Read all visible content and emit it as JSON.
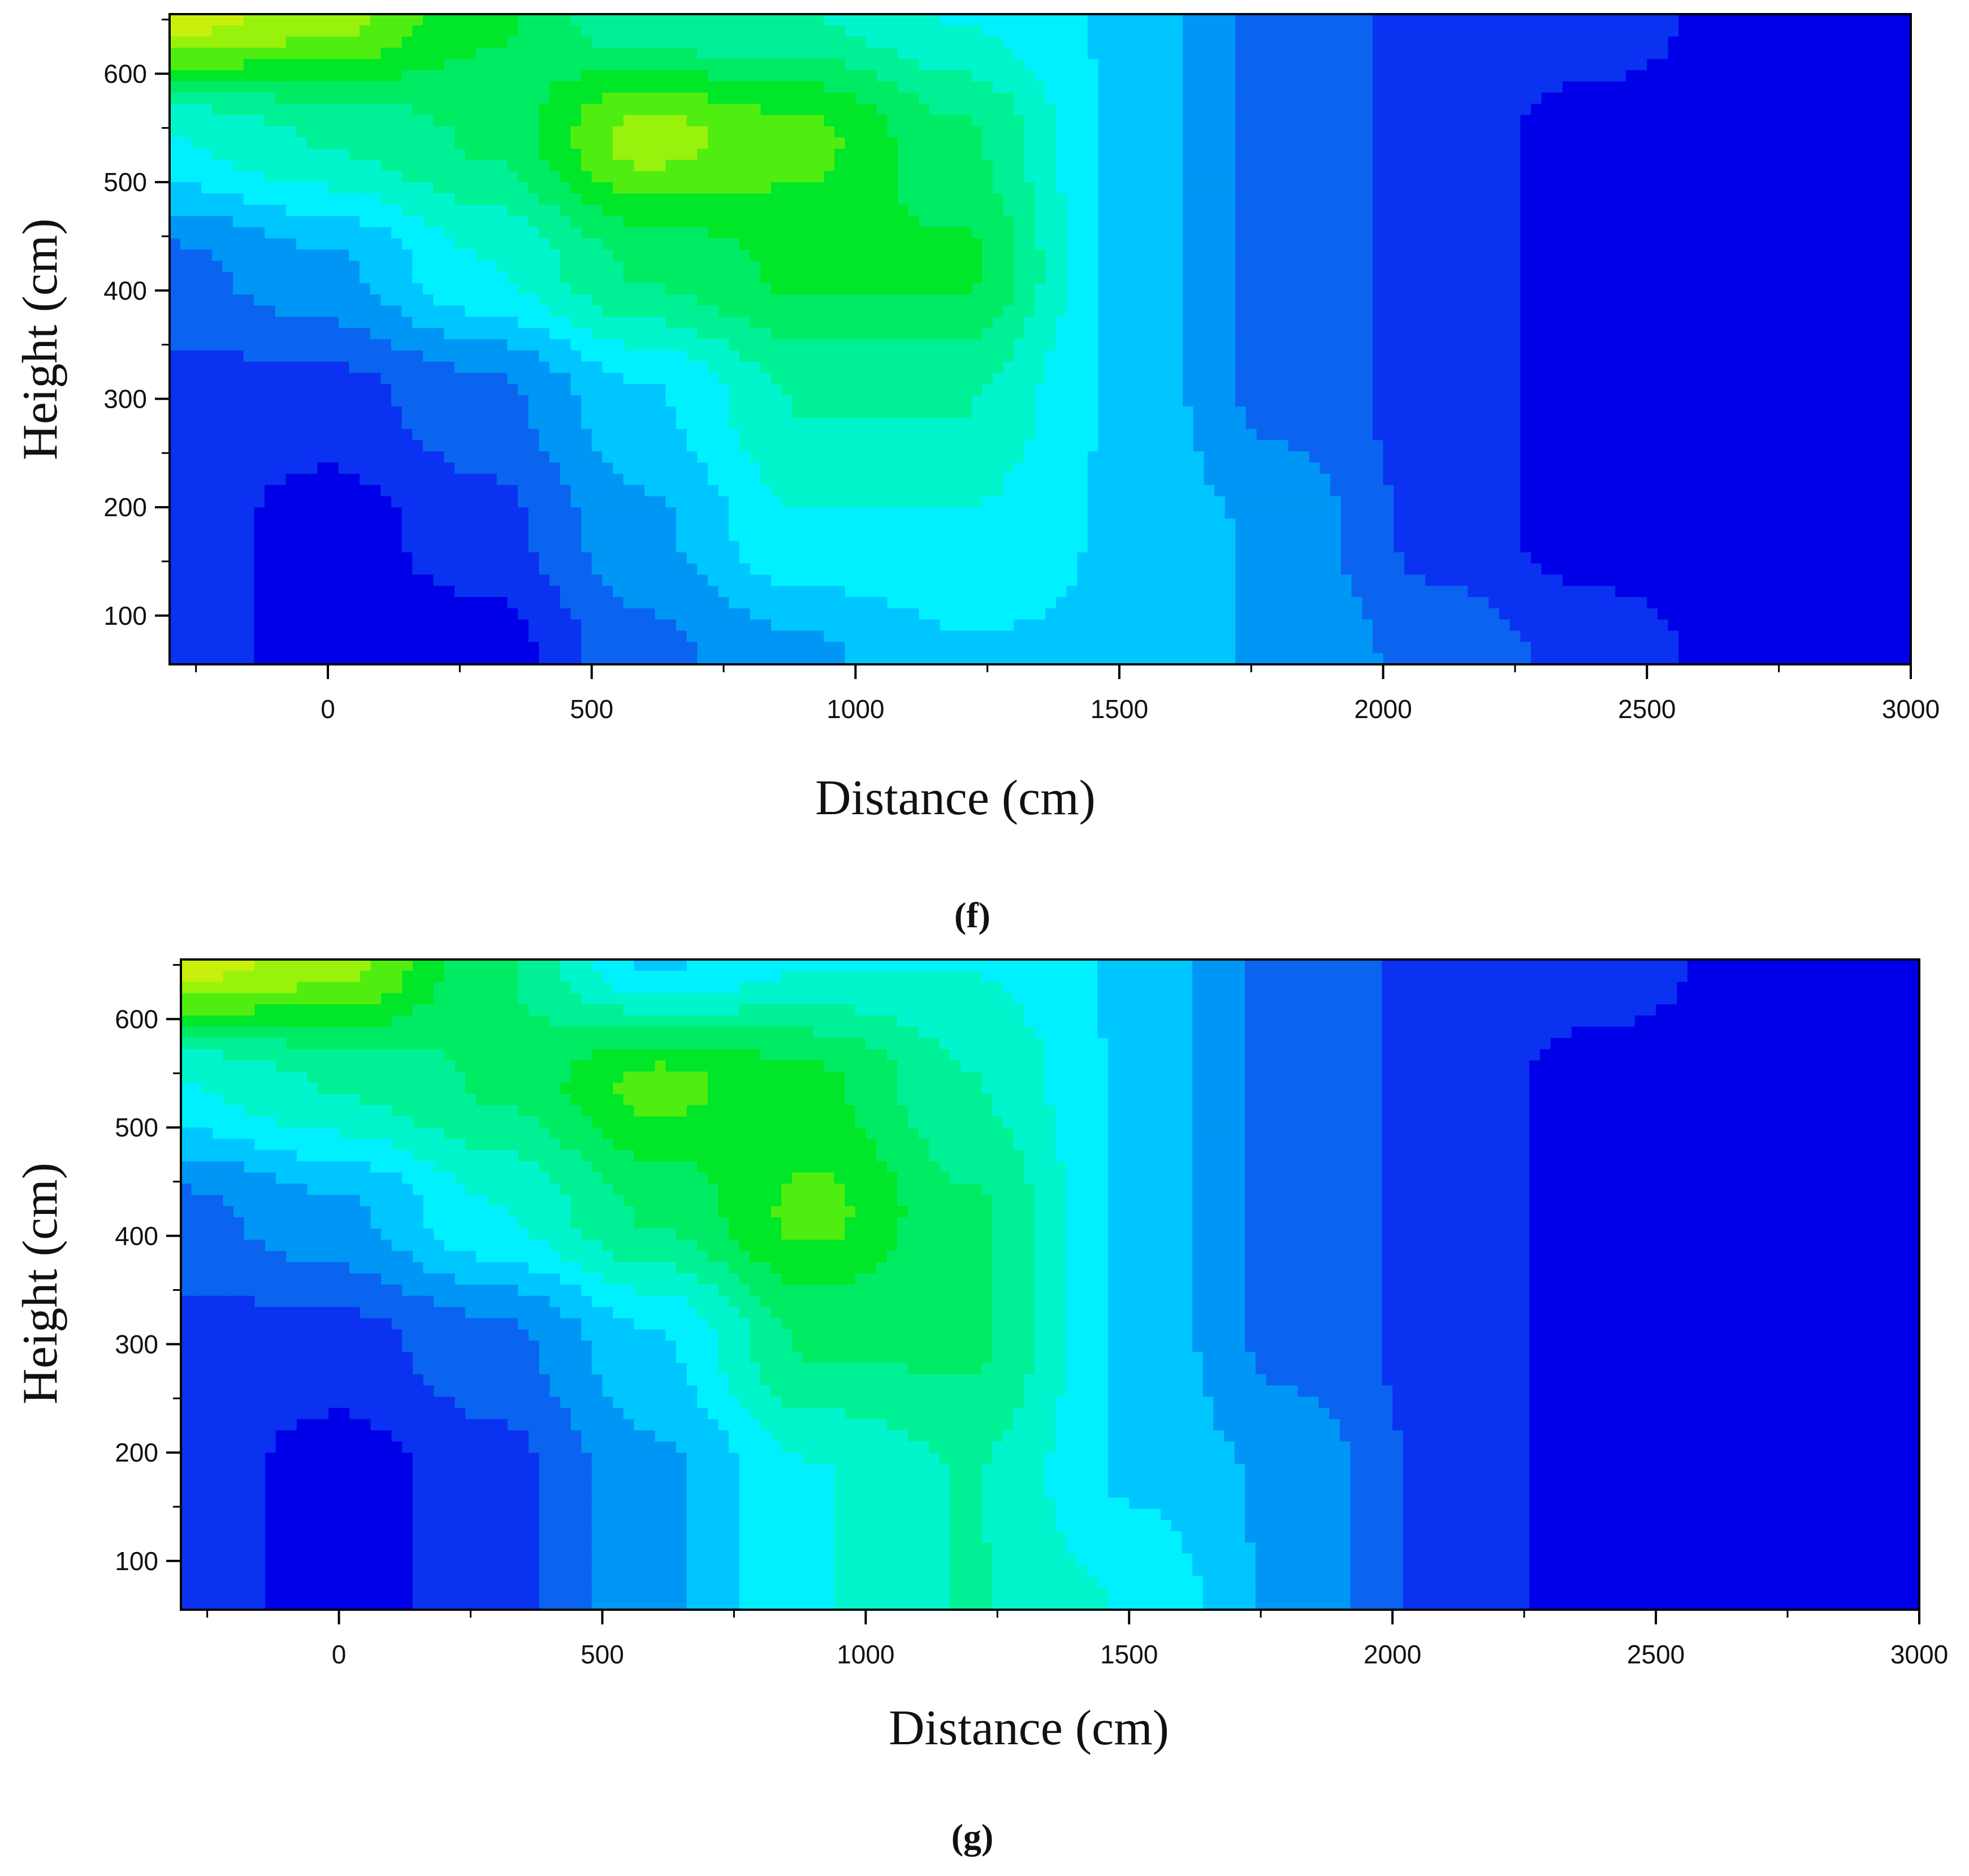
{
  "chart_data": [
    {
      "type": "heatmap",
      "panel_label": "(f)",
      "xlabel": "Distance (cm)",
      "ylabel": "Height (cm)",
      "xlim": [
        -300,
        3000
      ],
      "ylim": [
        55,
        655
      ],
      "xticks": [
        0,
        500,
        1000,
        1500,
        2000,
        2500,
        3000
      ],
      "yticks": [
        100,
        200,
        300,
        400,
        500,
        600
      ],
      "x": [
        -300,
        0,
        300,
        600,
        900,
        1200,
        1500,
        1800,
        2100,
        2400,
        2700,
        3000
      ],
      "y": [
        60,
        180,
        300,
        420,
        540,
        655
      ],
      "z": [
        [
          1,
          0,
          0,
          2,
          3,
          4,
          4,
          3,
          2,
          1,
          0,
          0
        ],
        [
          1,
          0,
          1,
          3,
          5,
          5,
          4,
          3,
          1,
          0,
          0,
          0
        ],
        [
          1,
          1,
          2,
          4,
          6,
          6,
          4,
          2,
          1,
          0,
          0,
          0
        ],
        [
          2,
          3,
          5,
          7,
          8,
          8,
          4,
          2,
          1,
          0,
          0,
          0
        ],
        [
          5,
          6,
          7,
          10,
          9,
          7,
          4,
          2,
          1,
          0,
          0,
          0
        ],
        [
          11,
          10,
          8,
          6,
          6,
          5,
          4,
          2,
          1,
          1,
          0,
          0
        ]
      ],
      "levels": 12,
      "colors": [
        "#0000e8",
        "#0a32f0",
        "#0a64f0",
        "#0096f5",
        "#00c6ff",
        "#00f0ff",
        "#00f5cd",
        "#00f096",
        "#00eb64",
        "#00e628",
        "#50ee10",
        "#98f20c",
        "#c8f00a"
      ],
      "grid": false
    },
    {
      "type": "heatmap",
      "panel_label": "(g)",
      "xlabel": "Distance (cm)",
      "ylabel": "Height (cm)",
      "xlim": [
        -300,
        3000
      ],
      "ylim": [
        55,
        655
      ],
      "xticks": [
        0,
        500,
        1000,
        1500,
        2000,
        2500,
        3000
      ],
      "yticks": [
        100,
        200,
        300,
        400,
        500,
        600
      ],
      "x": [
        -300,
        0,
        300,
        600,
        900,
        1200,
        1500,
        1800,
        2100,
        2400,
        2700,
        3000
      ],
      "y": [
        60,
        180,
        300,
        420,
        540,
        655
      ],
      "z": [
        [
          1,
          0,
          1,
          3,
          5,
          6,
          5,
          3,
          1,
          0,
          0,
          0
        ],
        [
          1,
          0,
          1,
          3,
          5,
          6,
          4,
          3,
          1,
          0,
          0,
          0
        ],
        [
          1,
          1,
          2,
          4,
          7,
          7,
          4,
          2,
          1,
          0,
          0,
          0
        ],
        [
          2,
          3,
          5,
          7,
          9,
          7,
          4,
          2,
          1,
          0,
          0,
          0
        ],
        [
          5,
          6,
          7,
          9,
          8,
          6,
          4,
          2,
          1,
          0,
          0,
          0
        ],
        [
          11,
          10,
          7,
          4,
          5,
          5,
          4,
          2,
          1,
          1,
          0,
          0
        ]
      ],
      "levels": 12,
      "colors": [
        "#0000e8",
        "#0a32f0",
        "#0a64f0",
        "#0096f5",
        "#00c6ff",
        "#00f0ff",
        "#00f5cd",
        "#00f096",
        "#00eb64",
        "#00e628",
        "#50ee10",
        "#98f20c",
        "#c8f00a"
      ],
      "grid": false
    }
  ]
}
